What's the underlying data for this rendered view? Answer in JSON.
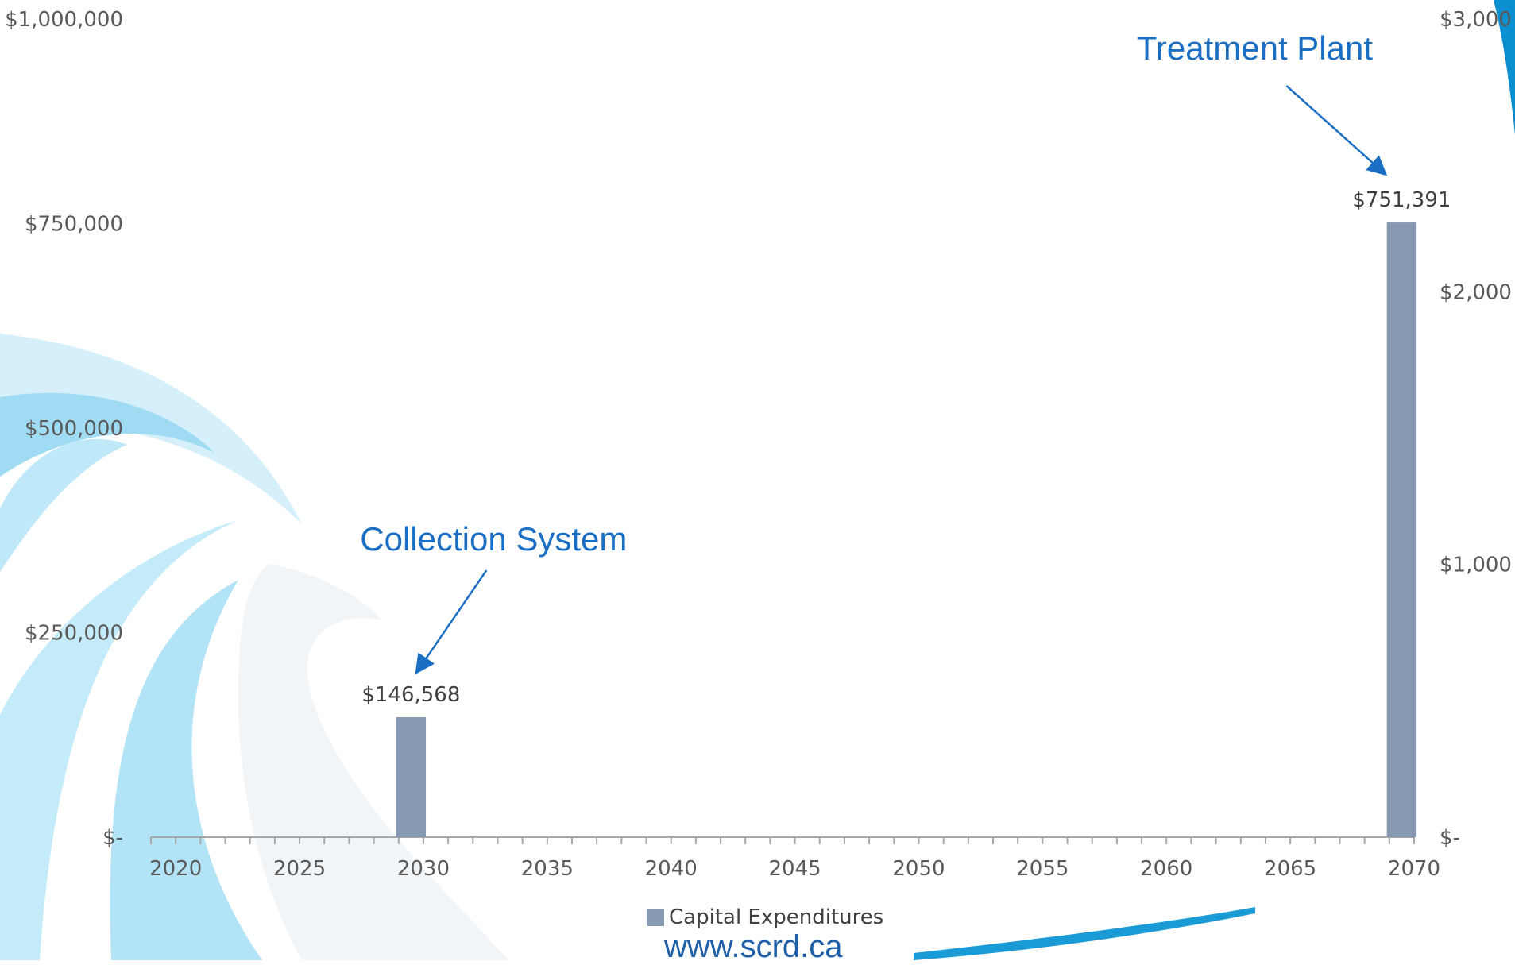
{
  "colors": {
    "bar": "#8899b3",
    "annotation": "#1a6fc4",
    "axis_text": "#595959",
    "url": "#1f5fa8"
  },
  "chart_data": {
    "type": "bar",
    "title": "",
    "xlabel": "",
    "ylabel": "",
    "x_ticks": [
      "2020",
      "2025",
      "2030",
      "2035",
      "2040",
      "2045",
      "2050",
      "2055",
      "2060",
      "2065",
      "2070"
    ],
    "xlim": [
      2019,
      2070
    ],
    "ylim": [
      0,
      1000000
    ],
    "y_ticks": [
      "$-",
      "$250,000",
      "$500,000",
      "$750,000",
      "$1,000,000"
    ],
    "y_tick_values": [
      0,
      250000,
      500000,
      750000,
      1000000
    ],
    "y2_ticks": [
      "$-",
      "$1,000",
      "$2,000",
      "$3,000"
    ],
    "grid": false,
    "legend_position": "bottom",
    "series": [
      {
        "name": "Capital Expenditures",
        "points": [
          {
            "year": 2029,
            "value": 146568,
            "label": "$146,568"
          },
          {
            "year": 2069,
            "value": 751391,
            "label": "$751,391"
          }
        ]
      }
    ],
    "annotations": [
      {
        "text": "Collection System",
        "year": 2029
      },
      {
        "text": "Treatment Plant",
        "year": 2069
      }
    ]
  },
  "footer": {
    "url": "www.scrd.ca"
  }
}
